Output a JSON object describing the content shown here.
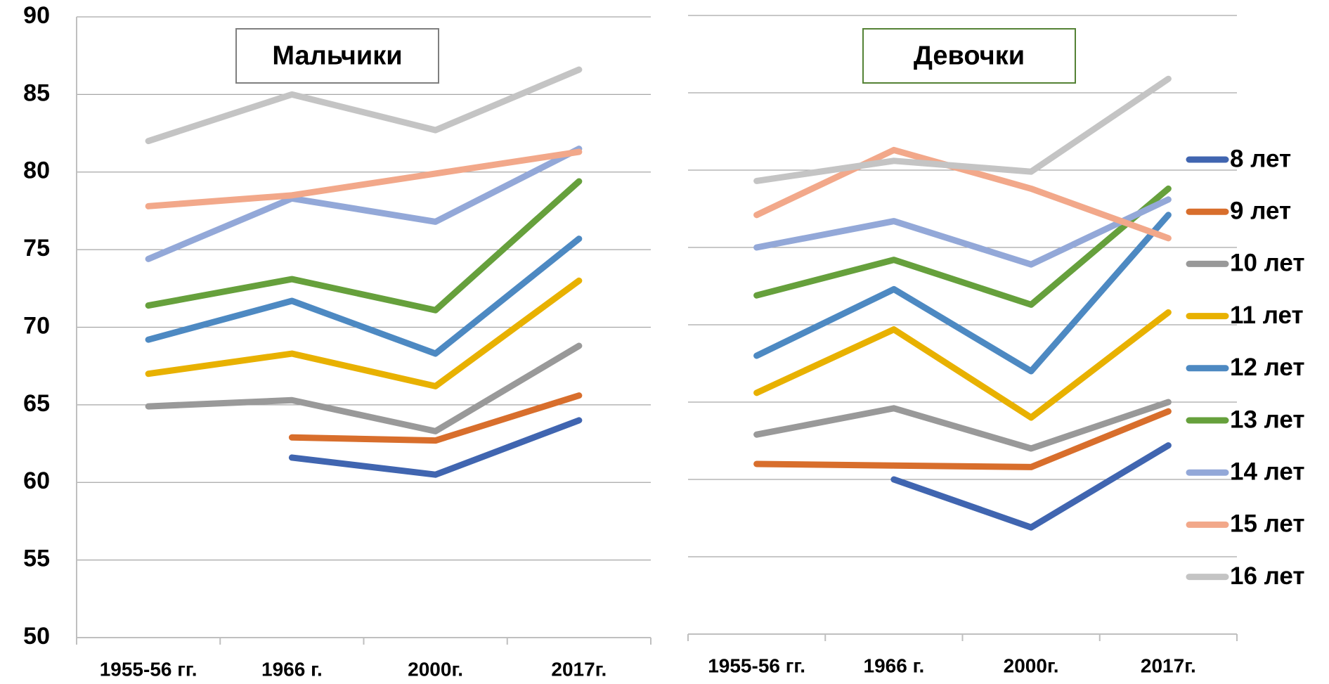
{
  "chart_data": [
    {
      "type": "line",
      "title": "Мальчики",
      "categories": [
        "1955-56 гг.",
        "1966 г.",
        "2000г.",
        "2017г."
      ],
      "ylim": [
        50,
        90
      ],
      "yticks": [
        50,
        55,
        60,
        65,
        70,
        75,
        80,
        85,
        90
      ],
      "grid": true,
      "series": [
        {
          "color": "#4065b0",
          "values": [
            null,
            61.6,
            60.5,
            64.0
          ]
        },
        {
          "color": "#d86e2c",
          "values": [
            null,
            62.9,
            62.7,
            65.6
          ]
        },
        {
          "color": "#999999",
          "values": [
            64.9,
            65.3,
            63.3,
            68.8
          ]
        },
        {
          "color": "#e8b100",
          "values": [
            67.0,
            68.3,
            66.2,
            73.0
          ]
        },
        {
          "color": "#4d89c2",
          "values": [
            69.2,
            71.7,
            68.3,
            75.7
          ]
        },
        {
          "color": "#66a03c",
          "values": [
            71.4,
            73.1,
            71.1,
            79.4
          ]
        },
        {
          "color": "#93a8d8",
          "values": [
            74.4,
            78.3,
            76.8,
            81.5
          ]
        },
        {
          "color": "#f2a88a",
          "values": [
            77.8,
            78.5,
            79.9,
            81.3
          ]
        },
        {
          "color": "#c4c4c4",
          "values": [
            82.0,
            85.0,
            82.7,
            86.6
          ]
        }
      ]
    },
    {
      "type": "line",
      "title": "Девочки",
      "categories": [
        "1955-56 гг.",
        "1966 г.",
        "2000г.",
        "2017г."
      ],
      "ylim": [
        50,
        90
      ],
      "yticks": [
        50,
        55,
        60,
        65,
        70,
        75,
        80,
        85,
        90
      ],
      "grid": true,
      "legend": "right",
      "series": [
        {
          "name": "8 лет",
          "color": "#4065b0",
          "values": [
            null,
            60.0,
            56.9,
            62.2
          ]
        },
        {
          "name": "9 лет",
          "color": "#d86e2c",
          "values": [
            61.0,
            60.9,
            60.8,
            64.4
          ]
        },
        {
          "name": "10 лет",
          "color": "#999999",
          "values": [
            62.9,
            64.6,
            62.0,
            65.0
          ]
        },
        {
          "name": "11 лет",
          "color": "#e8b100",
          "values": [
            65.6,
            69.7,
            64.0,
            70.8
          ]
        },
        {
          "name": "12 лет",
          "color": "#4d89c2",
          "values": [
            68.0,
            72.3,
            67.0,
            77.1
          ]
        },
        {
          "name": "13 лет",
          "color": "#66a03c",
          "values": [
            71.9,
            74.2,
            71.3,
            78.8
          ]
        },
        {
          "name": "14 лет",
          "color": "#93a8d8",
          "values": [
            75.0,
            76.7,
            73.9,
            78.1
          ]
        },
        {
          "name": "15 лет",
          "color": "#f2a88a",
          "values": [
            77.1,
            81.3,
            78.8,
            75.6
          ]
        },
        {
          "name": "16 лет",
          "color": "#c4c4c4",
          "values": [
            79.3,
            80.6,
            79.9,
            85.9
          ]
        }
      ]
    }
  ]
}
